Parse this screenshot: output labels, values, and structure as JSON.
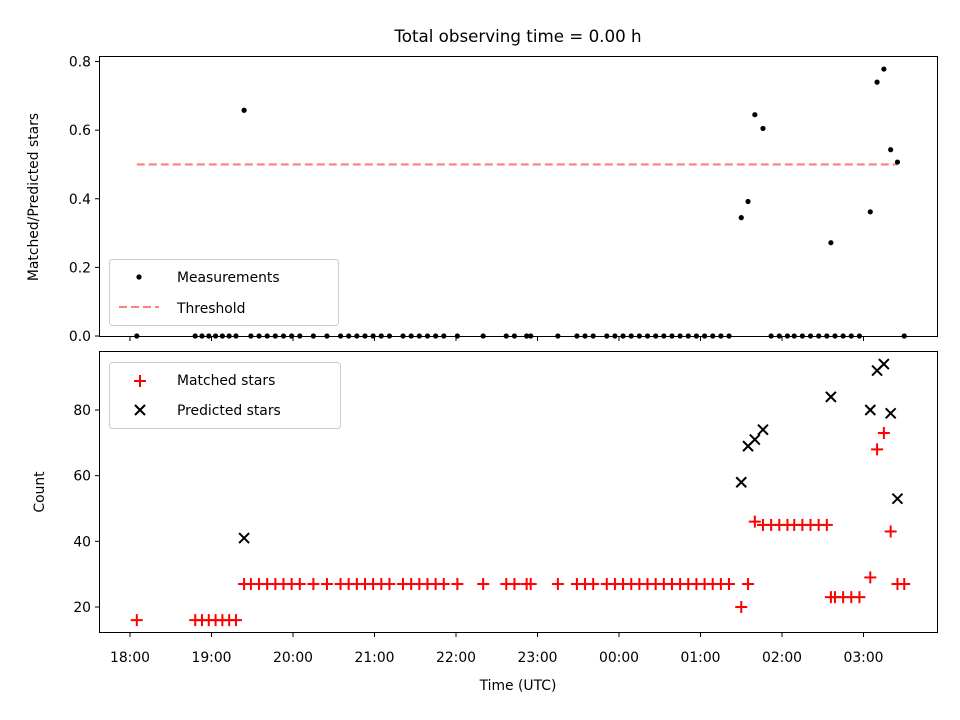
{
  "chart_data": [
    {
      "type": "scatter",
      "title": "Total observing time = 0.00 h",
      "xlabel": "",
      "ylabel": "Matched/Predicted stars",
      "x_axis_kind": "time",
      "x_unit": "hours (UTC), continuing past midnight",
      "ylim": [
        0,
        0.82
      ],
      "yticks": [
        "0.0",
        "0.2",
        "0.4",
        "0.6",
        "0.8"
      ],
      "grid": false,
      "legend_position": "lower-left",
      "series": [
        {
          "name": "Measurements",
          "marker": "dot",
          "color": "#000000",
          "points": [
            [
              "18:05",
              0.0
            ],
            [
              "18:48",
              0.0
            ],
            [
              "18:53",
              0.0
            ],
            [
              "18:58",
              0.0
            ],
            [
              "19:03",
              0.0
            ],
            [
              "19:08",
              0.0
            ],
            [
              "19:13",
              0.0
            ],
            [
              "19:18",
              0.0
            ],
            [
              "19:24",
              0.658
            ],
            [
              "19:29",
              0.0
            ],
            [
              "19:35",
              0.0
            ],
            [
              "19:41",
              0.0
            ],
            [
              "19:47",
              0.0
            ],
            [
              "19:53",
              0.0
            ],
            [
              "19:59",
              0.0
            ],
            [
              "20:05",
              0.0
            ],
            [
              "20:15",
              0.0
            ],
            [
              "20:25",
              0.0
            ],
            [
              "20:35",
              0.0
            ],
            [
              "20:41",
              0.0
            ],
            [
              "20:47",
              0.0
            ],
            [
              "20:53",
              0.0
            ],
            [
              "20:59",
              0.0
            ],
            [
              "21:05",
              0.0
            ],
            [
              "21:11",
              0.0
            ],
            [
              "21:21",
              0.0
            ],
            [
              "21:27",
              0.0
            ],
            [
              "21:33",
              0.0
            ],
            [
              "21:39",
              0.0
            ],
            [
              "21:45",
              0.0
            ],
            [
              "21:51",
              0.0
            ],
            [
              "22:01",
              0.0
            ],
            [
              "22:20",
              0.0
            ],
            [
              "22:37",
              0.0
            ],
            [
              "22:43",
              0.0
            ],
            [
              "22:52",
              0.0
            ],
            [
              "22:55",
              0.0
            ],
            [
              "23:15",
              0.0
            ],
            [
              "23:29",
              0.0
            ],
            [
              "23:35",
              0.0
            ],
            [
              "23:41",
              0.0
            ],
            [
              "23:51",
              0.0
            ],
            [
              "23:57",
              0.0
            ],
            [
              "00:03",
              0.0
            ],
            [
              "00:09",
              0.0
            ],
            [
              "00:15",
              0.0
            ],
            [
              "00:21",
              0.0
            ],
            [
              "00:27",
              0.0
            ],
            [
              "00:33",
              0.0
            ],
            [
              "00:39",
              0.0
            ],
            [
              "00:45",
              0.0
            ],
            [
              "00:51",
              0.0
            ],
            [
              "00:57",
              0.0
            ],
            [
              "01:03",
              0.0
            ],
            [
              "01:09",
              0.0
            ],
            [
              "01:15",
              0.0
            ],
            [
              "01:21",
              0.0
            ],
            [
              "01:30",
              0.345
            ],
            [
              "01:35",
              0.392
            ],
            [
              "01:40",
              0.645
            ],
            [
              "01:46",
              0.605
            ],
            [
              "01:52",
              0.0
            ],
            [
              "01:58",
              0.0
            ],
            [
              "02:04",
              0.0
            ],
            [
              "02:09",
              0.0
            ],
            [
              "02:15",
              0.0
            ],
            [
              "02:21",
              0.0
            ],
            [
              "02:27",
              0.0
            ],
            [
              "02:33",
              0.0
            ],
            [
              "02:36",
              0.272
            ],
            [
              "02:39",
              0.0
            ],
            [
              "02:45",
              0.0
            ],
            [
              "02:51",
              0.0
            ],
            [
              "02:57",
              0.0
            ],
            [
              "03:05",
              0.362
            ],
            [
              "03:10",
              0.74
            ],
            [
              "03:15",
              0.778
            ],
            [
              "03:20",
              0.543
            ],
            [
              "03:25",
              0.507
            ],
            [
              "03:30",
              0.0
            ]
          ]
        },
        {
          "name": "Threshold",
          "line_style": "dashed",
          "color": "#ff7f7f",
          "points": [
            [
              "18:05",
              0.5
            ],
            [
              "03:25",
              0.5
            ]
          ]
        }
      ]
    },
    {
      "type": "scatter",
      "title": "",
      "xlabel": "Time (UTC)",
      "ylabel": "Count",
      "x_axis_kind": "time",
      "xticks": [
        "18:00",
        "19:00",
        "20:00",
        "21:00",
        "22:00",
        "23:00",
        "00:00",
        "01:00",
        "02:00",
        "03:00"
      ],
      "ylim": [
        12,
        97
      ],
      "yticks": [
        "20",
        "40",
        "60",
        "80"
      ],
      "grid": false,
      "legend_position": "top-left",
      "series": [
        {
          "name": "Matched stars",
          "marker": "plus",
          "color": "#ff0000",
          "points": [
            [
              "18:05",
              16
            ],
            [
              "18:48",
              16
            ],
            [
              "18:53",
              16
            ],
            [
              "18:58",
              16
            ],
            [
              "19:03",
              16
            ],
            [
              "19:08",
              16
            ],
            [
              "19:13",
              16
            ],
            [
              "19:18",
              16
            ],
            [
              "19:24",
              27
            ],
            [
              "19:29",
              27
            ],
            [
              "19:35",
              27
            ],
            [
              "19:41",
              27
            ],
            [
              "19:47",
              27
            ],
            [
              "19:53",
              27
            ],
            [
              "19:59",
              27
            ],
            [
              "20:05",
              27
            ],
            [
              "20:15",
              27
            ],
            [
              "20:25",
              27
            ],
            [
              "20:35",
              27
            ],
            [
              "20:41",
              27
            ],
            [
              "20:47",
              27
            ],
            [
              "20:53",
              27
            ],
            [
              "20:59",
              27
            ],
            [
              "21:05",
              27
            ],
            [
              "21:11",
              27
            ],
            [
              "21:21",
              27
            ],
            [
              "21:27",
              27
            ],
            [
              "21:33",
              27
            ],
            [
              "21:39",
              27
            ],
            [
              "21:45",
              27
            ],
            [
              "21:51",
              27
            ],
            [
              "22:01",
              27
            ],
            [
              "22:20",
              27
            ],
            [
              "22:37",
              27
            ],
            [
              "22:43",
              27
            ],
            [
              "22:52",
              27
            ],
            [
              "22:55",
              27
            ],
            [
              "23:15",
              27
            ],
            [
              "23:29",
              27
            ],
            [
              "23:35",
              27
            ],
            [
              "23:41",
              27
            ],
            [
              "23:51",
              27
            ],
            [
              "23:57",
              27
            ],
            [
              "00:03",
              27
            ],
            [
              "00:09",
              27
            ],
            [
              "00:15",
              27
            ],
            [
              "00:21",
              27
            ],
            [
              "00:27",
              27
            ],
            [
              "00:33",
              27
            ],
            [
              "00:39",
              27
            ],
            [
              "00:45",
              27
            ],
            [
              "00:51",
              27
            ],
            [
              "00:57",
              27
            ],
            [
              "01:03",
              27
            ],
            [
              "01:09",
              27
            ],
            [
              "01:15",
              27
            ],
            [
              "01:21",
              27
            ],
            [
              "01:30",
              20
            ],
            [
              "01:35",
              27
            ],
            [
              "01:40",
              46
            ],
            [
              "01:46",
              45
            ],
            [
              "01:52",
              45
            ],
            [
              "01:58",
              45
            ],
            [
              "02:04",
              45
            ],
            [
              "02:09",
              45
            ],
            [
              "02:15",
              45
            ],
            [
              "02:21",
              45
            ],
            [
              "02:27",
              45
            ],
            [
              "02:33",
              45
            ],
            [
              "02:36",
              23
            ],
            [
              "02:39",
              23
            ],
            [
              "02:45",
              23
            ],
            [
              "02:51",
              23
            ],
            [
              "02:57",
              23
            ],
            [
              "03:05",
              29
            ],
            [
              "03:10",
              68
            ],
            [
              "03:15",
              73
            ],
            [
              "03:20",
              43
            ],
            [
              "03:25",
              27
            ],
            [
              "03:30",
              27
            ]
          ]
        },
        {
          "name": "Predicted stars",
          "marker": "x",
          "color": "#000000",
          "points": [
            [
              "19:24",
              41
            ],
            [
              "01:30",
              58
            ],
            [
              "01:35",
              69
            ],
            [
              "01:40",
              71
            ],
            [
              "01:46",
              74
            ],
            [
              "02:36",
              84
            ],
            [
              "03:05",
              80
            ],
            [
              "03:10",
              92
            ],
            [
              "03:15",
              94
            ],
            [
              "03:20",
              79
            ],
            [
              "03:25",
              53
            ]
          ]
        }
      ]
    }
  ]
}
